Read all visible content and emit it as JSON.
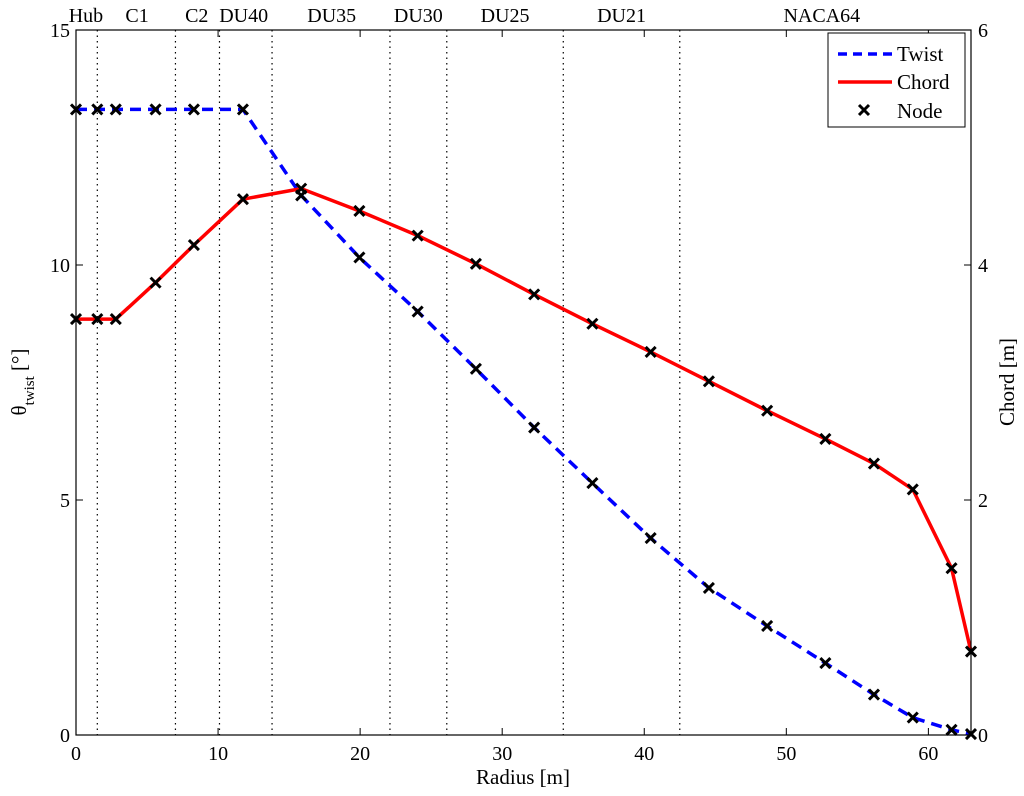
{
  "chart_data": {
    "type": "line",
    "title": "",
    "xlabel": "Radius [m]",
    "ylabel_left": {
      "main": "θ",
      "sub": "twist",
      "unit": " [°]"
    },
    "ylabel_right": "Chord [m]",
    "xlim": [
      0,
      63
    ],
    "ylim_left": [
      0,
      15
    ],
    "ylim_right": [
      0,
      6
    ],
    "xticks": [
      0,
      10,
      20,
      30,
      40,
      50,
      60
    ],
    "yticks_left": [
      0,
      5,
      10,
      15
    ],
    "yticks_right": [
      0,
      2,
      4,
      6
    ],
    "grid": false,
    "legend_position": "top-right",
    "regions": [
      {
        "label": "Hub",
        "x": 0.7
      },
      {
        "label": "C1",
        "x": 4.3
      },
      {
        "label": "C2",
        "x": 8.5
      },
      {
        "label": "DU40",
        "x": 11.8
      },
      {
        "label": "DU35",
        "x": 18.0
      },
      {
        "label": "DU30",
        "x": 24.1
      },
      {
        "label": "DU25",
        "x": 30.2
      },
      {
        "label": "DU21",
        "x": 38.4
      },
      {
        "label": "NACA64",
        "x": 52.5
      }
    ],
    "region_boundaries": [
      1.5,
      7.0,
      10.1,
      13.8,
      22.1,
      26.1,
      34.3,
      42.5
    ],
    "x": [
      0.0,
      1.5,
      2.8,
      5.6,
      8.3,
      11.75,
      15.85,
      19.95,
      24.05,
      28.15,
      32.25,
      36.35,
      40.45,
      44.55,
      48.65,
      52.75,
      56.17,
      58.9,
      61.63,
      63.0
    ],
    "series": [
      {
        "name": "Twist",
        "axis": "left",
        "color": "#0000ff",
        "style": "dashed",
        "values": [
          13.31,
          13.31,
          13.31,
          13.31,
          13.31,
          13.31,
          11.48,
          10.16,
          9.01,
          7.79,
          6.54,
          5.36,
          4.19,
          3.13,
          2.32,
          1.53,
          0.86,
          0.37,
          0.11,
          0.02
        ]
      },
      {
        "name": "Chord",
        "axis": "right",
        "color": "#ff0000",
        "style": "solid",
        "values": [
          3.54,
          3.54,
          3.54,
          3.85,
          4.17,
          4.56,
          4.65,
          4.46,
          4.25,
          4.01,
          3.75,
          3.5,
          3.26,
          3.01,
          2.76,
          2.52,
          2.31,
          2.09,
          1.42,
          0.71
        ]
      }
    ],
    "node_marker": {
      "name": "Node",
      "color": "#000000",
      "symbol": "x"
    }
  }
}
